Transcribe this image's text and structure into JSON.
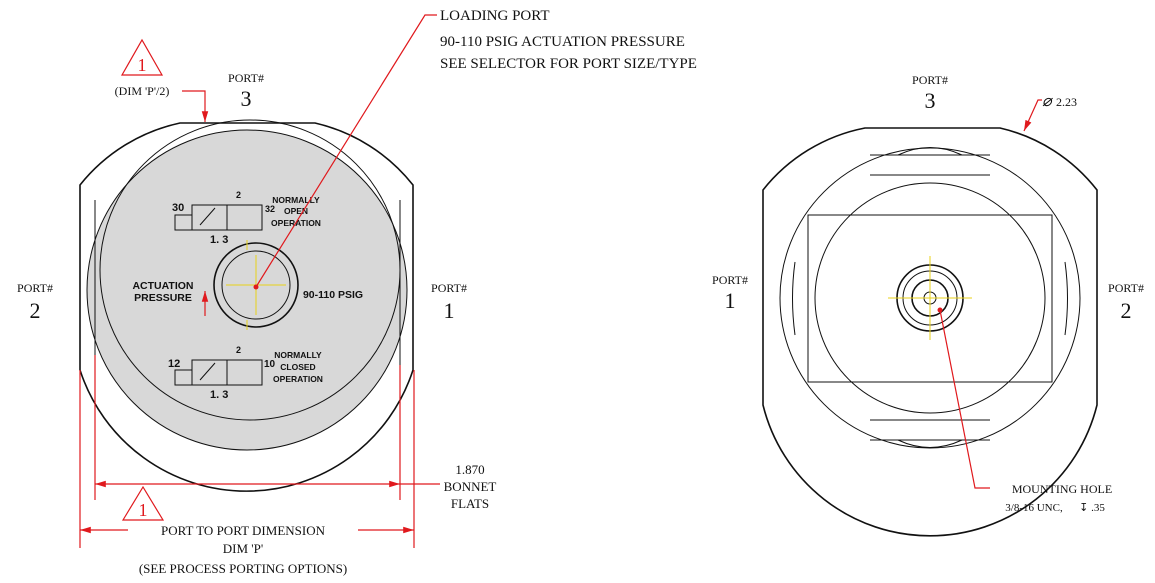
{
  "callouts": {
    "loading_port": [
      "LOADING PORT",
      "90-110 PSIG ACTUATION PRESSURE",
      "SEE SELECTOR FOR PORT SIZE/TYPE"
    ],
    "revision_top": "1",
    "half_dim": "(DIM 'P'/2)",
    "bonnet_flats": [
      "1.870",
      "BONNET",
      "FLATS"
    ],
    "revision_bottom": "1",
    "port_to_port": [
      "PORT TO PORT DIMENSION",
      "DIM 'P'",
      "(SEE PROCESS PORTING OPTIONS)"
    ],
    "diameter": "2.23",
    "mounting_hole": [
      "MOUNTING HOLE",
      "3/8-16 UNC,",
      "↧ .35"
    ]
  },
  "left_view": {
    "ports": [
      {
        "label": "PORT#",
        "number": "3"
      },
      {
        "label": "PORT#",
        "number": "2"
      },
      {
        "label": "PORT#",
        "number": "1"
      }
    ],
    "upper_valve": {
      "pilot": "30",
      "top": "2",
      "exhaust": "32",
      "bottom": "1.  3",
      "text": [
        "NORMALLY",
        "OPEN",
        "OPERATION"
      ]
    },
    "actuation": [
      "ACTUATION",
      "PRESSURE"
    ],
    "pressure": "90-110 PSIG",
    "lower_valve": {
      "pilot": "12",
      "top": "2",
      "exhaust": "10",
      "bottom": "1.  3",
      "text": [
        "NORMALLY",
        "CLOSED",
        "OPERATION"
      ]
    }
  },
  "right_view": {
    "ports": [
      {
        "label": "PORT#",
        "number": "3"
      },
      {
        "label": "PORT#",
        "number": "1"
      },
      {
        "label": "PORT#",
        "number": "2"
      }
    ]
  }
}
